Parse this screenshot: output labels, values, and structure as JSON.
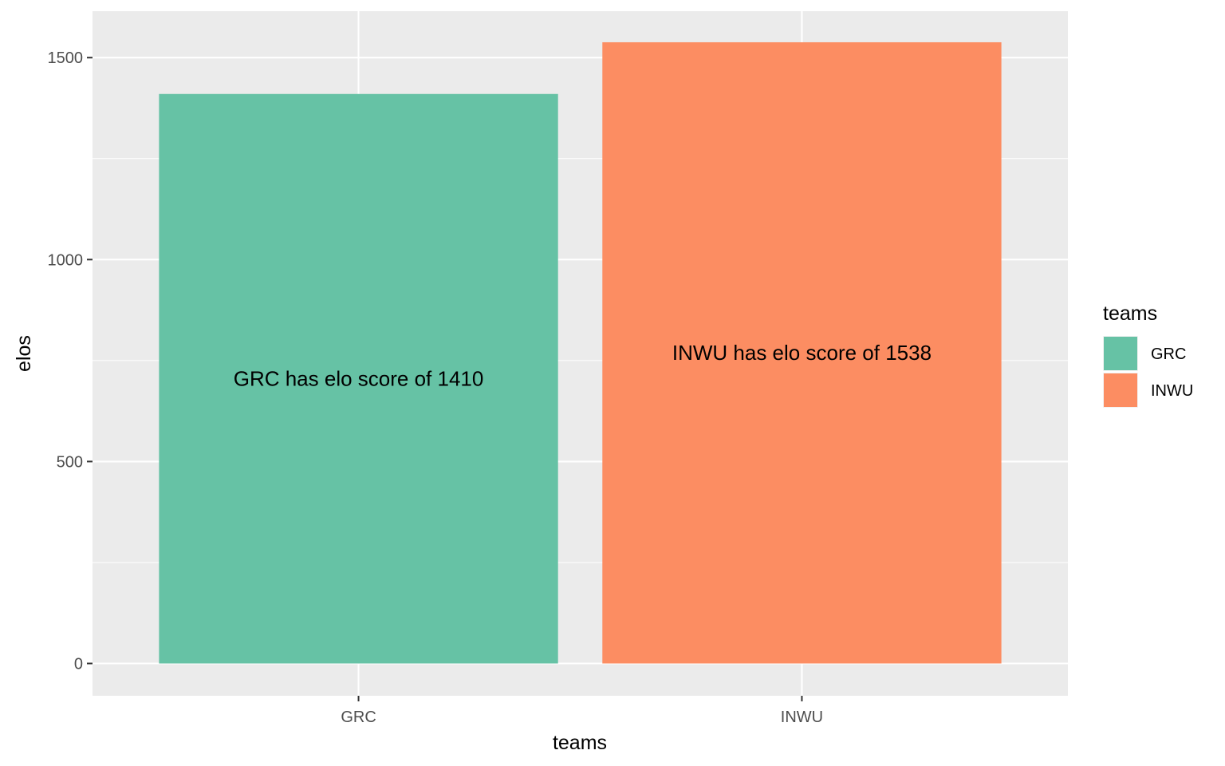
{
  "chart_data": {
    "type": "bar",
    "categories": [
      "GRC",
      "INWU"
    ],
    "values": [
      1410,
      1538
    ],
    "colors": [
      "#66c2a5",
      "#fc8d62"
    ],
    "data_labels": [
      "GRC has elo score of 1410",
      "INWU has elo score of 1538"
    ],
    "xlabel": "teams",
    "ylabel": "elos",
    "ylim": [
      -80,
      1615
    ],
    "y_ticks": [
      0,
      500,
      1000,
      1500
    ],
    "y_tick_labels": [
      "0",
      "500",
      "1000",
      "1500"
    ],
    "y_minor_ticks": [
      250,
      750,
      1250
    ],
    "grid": true,
    "legend": {
      "title": "teams",
      "position": "right",
      "entries": [
        "GRC",
        "INWU"
      ]
    }
  }
}
